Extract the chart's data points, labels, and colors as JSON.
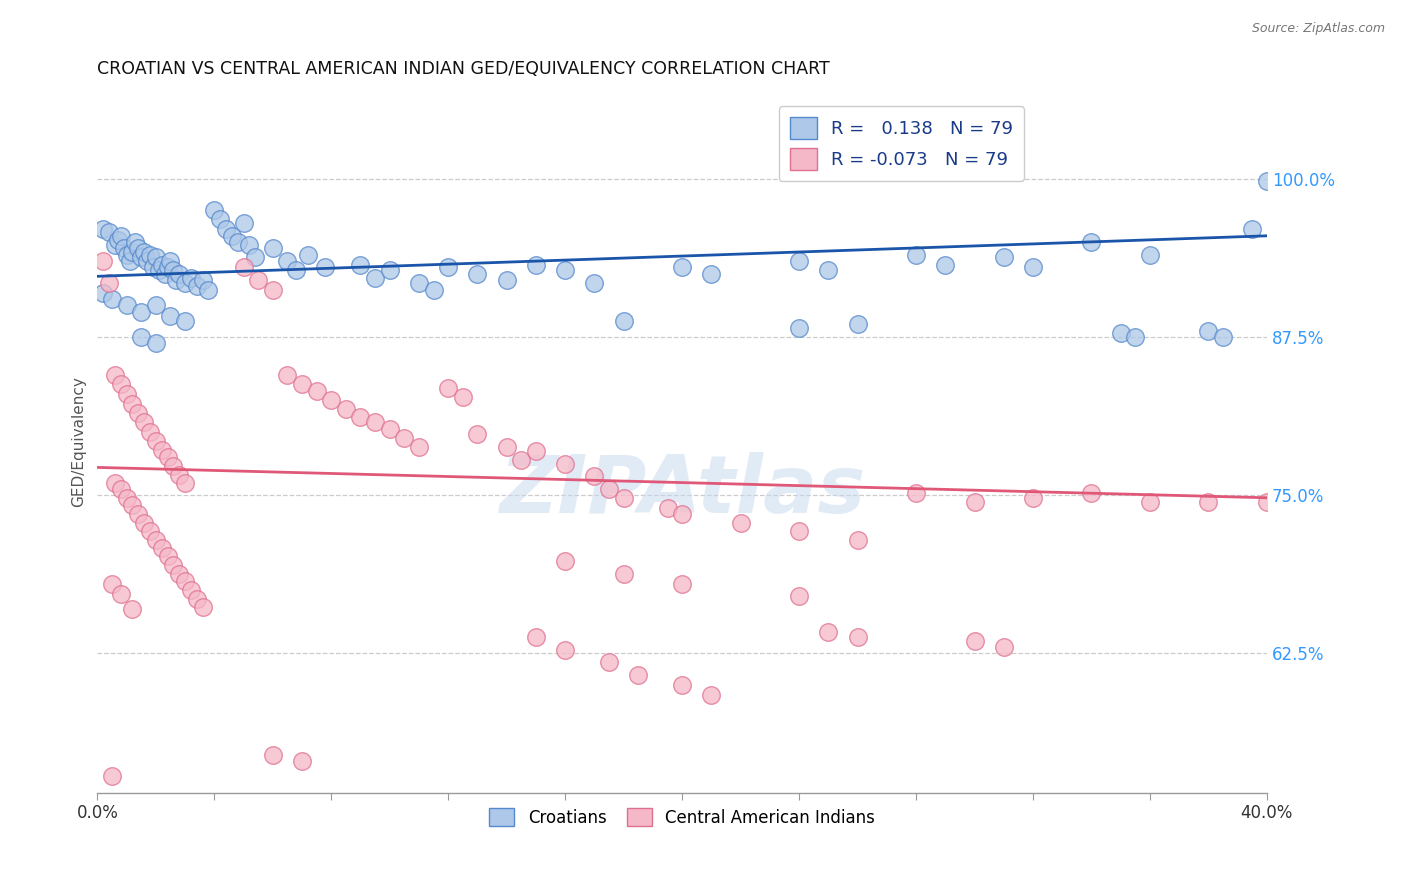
{
  "title": "CROATIAN VS CENTRAL AMERICAN INDIAN GED/EQUIVALENCY CORRELATION CHART",
  "source": "Source: ZipAtlas.com",
  "ylabel": "GED/Equivalency",
  "ytick_labels": [
    "100.0%",
    "87.5%",
    "75.0%",
    "62.5%"
  ],
  "ytick_values": [
    1.0,
    0.875,
    0.75,
    0.625
  ],
  "xlim": [
    0.0,
    0.4
  ],
  "ylim": [
    0.515,
    1.07
  ],
  "xticks": [
    0.0,
    0.04,
    0.08,
    0.12,
    0.16,
    0.2,
    0.24,
    0.28,
    0.32,
    0.36,
    0.4
  ],
  "croatian_fill": "#adc8e8",
  "croatian_edge": "#5588cc",
  "central_fill": "#f5b8c8",
  "central_edge": "#e07090",
  "blue_line_color": "#1a55aa",
  "pink_line_color": "#e05878",
  "watermark": "ZIPAtlas",
  "croatian_line": {
    "x0": 0.0,
    "y0": 0.923,
    "x1": 0.4,
    "y1": 0.955
  },
  "central_line": {
    "x0": 0.0,
    "y0": 0.772,
    "x1": 0.4,
    "y1": 0.748
  },
  "croatian_scatter": [
    [
      0.002,
      0.96
    ],
    [
      0.004,
      0.958
    ],
    [
      0.006,
      0.948
    ],
    [
      0.007,
      0.952
    ],
    [
      0.008,
      0.955
    ],
    [
      0.009,
      0.945
    ],
    [
      0.01,
      0.94
    ],
    [
      0.011,
      0.935
    ],
    [
      0.012,
      0.942
    ],
    [
      0.013,
      0.95
    ],
    [
      0.014,
      0.945
    ],
    [
      0.015,
      0.938
    ],
    [
      0.016,
      0.942
    ],
    [
      0.017,
      0.935
    ],
    [
      0.018,
      0.94
    ],
    [
      0.019,
      0.93
    ],
    [
      0.02,
      0.938
    ],
    [
      0.021,
      0.928
    ],
    [
      0.022,
      0.932
    ],
    [
      0.023,
      0.925
    ],
    [
      0.024,
      0.93
    ],
    [
      0.025,
      0.935
    ],
    [
      0.026,
      0.928
    ],
    [
      0.027,
      0.92
    ],
    [
      0.028,
      0.925
    ],
    [
      0.03,
      0.918
    ],
    [
      0.032,
      0.922
    ],
    [
      0.034,
      0.915
    ],
    [
      0.036,
      0.92
    ],
    [
      0.038,
      0.912
    ],
    [
      0.002,
      0.91
    ],
    [
      0.005,
      0.905
    ],
    [
      0.01,
      0.9
    ],
    [
      0.015,
      0.895
    ],
    [
      0.02,
      0.9
    ],
    [
      0.025,
      0.892
    ],
    [
      0.03,
      0.888
    ],
    [
      0.04,
      0.975
    ],
    [
      0.042,
      0.968
    ],
    [
      0.044,
      0.96
    ],
    [
      0.046,
      0.955
    ],
    [
      0.048,
      0.95
    ],
    [
      0.05,
      0.965
    ],
    [
      0.052,
      0.948
    ],
    [
      0.054,
      0.938
    ],
    [
      0.06,
      0.945
    ],
    [
      0.065,
      0.935
    ],
    [
      0.068,
      0.928
    ],
    [
      0.072,
      0.94
    ],
    [
      0.078,
      0.93
    ],
    [
      0.09,
      0.932
    ],
    [
      0.095,
      0.922
    ],
    [
      0.1,
      0.928
    ],
    [
      0.11,
      0.918
    ],
    [
      0.115,
      0.912
    ],
    [
      0.12,
      0.93
    ],
    [
      0.13,
      0.925
    ],
    [
      0.14,
      0.92
    ],
    [
      0.15,
      0.932
    ],
    [
      0.16,
      0.928
    ],
    [
      0.17,
      0.918
    ],
    [
      0.18,
      0.888
    ],
    [
      0.2,
      0.93
    ],
    [
      0.21,
      0.925
    ],
    [
      0.24,
      0.935
    ],
    [
      0.25,
      0.928
    ],
    [
      0.28,
      0.94
    ],
    [
      0.29,
      0.932
    ],
    [
      0.31,
      0.938
    ],
    [
      0.32,
      0.93
    ],
    [
      0.34,
      0.95
    ],
    [
      0.36,
      0.94
    ],
    [
      0.38,
      0.88
    ],
    [
      0.385,
      0.875
    ],
    [
      0.395,
      0.96
    ],
    [
      0.4,
      0.998
    ],
    [
      0.35,
      0.878
    ],
    [
      0.355,
      0.875
    ],
    [
      0.24,
      0.882
    ],
    [
      0.26,
      0.885
    ],
    [
      0.015,
      0.875
    ],
    [
      0.02,
      0.87
    ]
  ],
  "central_scatter": [
    [
      0.002,
      0.935
    ],
    [
      0.004,
      0.918
    ],
    [
      0.006,
      0.845
    ],
    [
      0.008,
      0.838
    ],
    [
      0.01,
      0.83
    ],
    [
      0.012,
      0.822
    ],
    [
      0.014,
      0.815
    ],
    [
      0.016,
      0.808
    ],
    [
      0.018,
      0.8
    ],
    [
      0.02,
      0.793
    ],
    [
      0.022,
      0.786
    ],
    [
      0.024,
      0.78
    ],
    [
      0.026,
      0.773
    ],
    [
      0.028,
      0.766
    ],
    [
      0.03,
      0.76
    ],
    [
      0.006,
      0.76
    ],
    [
      0.008,
      0.755
    ],
    [
      0.01,
      0.748
    ],
    [
      0.012,
      0.742
    ],
    [
      0.014,
      0.735
    ],
    [
      0.016,
      0.728
    ],
    [
      0.018,
      0.722
    ],
    [
      0.02,
      0.715
    ],
    [
      0.022,
      0.708
    ],
    [
      0.024,
      0.702
    ],
    [
      0.026,
      0.695
    ],
    [
      0.028,
      0.688
    ],
    [
      0.03,
      0.682
    ],
    [
      0.032,
      0.675
    ],
    [
      0.034,
      0.668
    ],
    [
      0.036,
      0.662
    ],
    [
      0.005,
      0.68
    ],
    [
      0.008,
      0.672
    ],
    [
      0.012,
      0.66
    ],
    [
      0.05,
      0.93
    ],
    [
      0.055,
      0.92
    ],
    [
      0.06,
      0.912
    ],
    [
      0.065,
      0.845
    ],
    [
      0.07,
      0.838
    ],
    [
      0.075,
      0.832
    ],
    [
      0.08,
      0.825
    ],
    [
      0.085,
      0.818
    ],
    [
      0.09,
      0.812
    ],
    [
      0.095,
      0.808
    ],
    [
      0.1,
      0.802
    ],
    [
      0.105,
      0.795
    ],
    [
      0.11,
      0.788
    ],
    [
      0.12,
      0.835
    ],
    [
      0.125,
      0.828
    ],
    [
      0.13,
      0.798
    ],
    [
      0.14,
      0.788
    ],
    [
      0.145,
      0.778
    ],
    [
      0.15,
      0.785
    ],
    [
      0.16,
      0.775
    ],
    [
      0.17,
      0.765
    ],
    [
      0.175,
      0.755
    ],
    [
      0.18,
      0.748
    ],
    [
      0.195,
      0.74
    ],
    [
      0.2,
      0.735
    ],
    [
      0.22,
      0.728
    ],
    [
      0.24,
      0.722
    ],
    [
      0.26,
      0.715
    ],
    [
      0.28,
      0.752
    ],
    [
      0.3,
      0.745
    ],
    [
      0.32,
      0.748
    ],
    [
      0.34,
      0.752
    ],
    [
      0.36,
      0.745
    ],
    [
      0.38,
      0.745
    ],
    [
      0.4,
      0.745
    ],
    [
      0.16,
      0.698
    ],
    [
      0.18,
      0.688
    ],
    [
      0.2,
      0.68
    ],
    [
      0.24,
      0.67
    ],
    [
      0.25,
      0.642
    ],
    [
      0.26,
      0.638
    ],
    [
      0.3,
      0.635
    ],
    [
      0.31,
      0.63
    ],
    [
      0.15,
      0.638
    ],
    [
      0.16,
      0.628
    ],
    [
      0.175,
      0.618
    ],
    [
      0.185,
      0.608
    ],
    [
      0.2,
      0.6
    ],
    [
      0.21,
      0.592
    ],
    [
      0.06,
      0.545
    ],
    [
      0.07,
      0.54
    ],
    [
      0.005,
      0.528
    ]
  ]
}
